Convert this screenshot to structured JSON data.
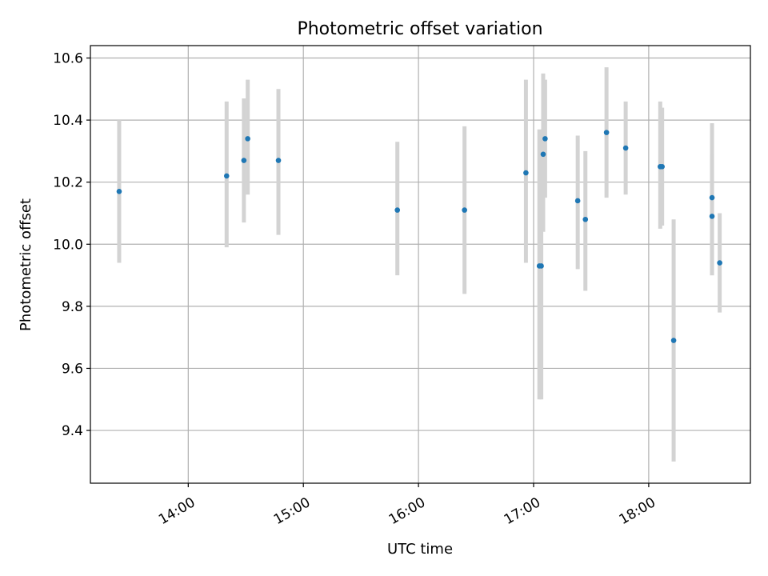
{
  "chart_data": {
    "type": "scatter",
    "title": "Photometric offset variation",
    "xlabel": "UTC time",
    "ylabel": "Photometric offset",
    "x_axis_type": "time",
    "xlim": [
      "13:09",
      "18:53"
    ],
    "ylim": [
      9.23,
      10.64
    ],
    "xticks": [
      "14:00",
      "15:00",
      "16:00",
      "17:00",
      "18:00"
    ],
    "yticks": [
      9.4,
      9.6,
      9.8,
      10.0,
      10.2,
      10.4,
      10.6
    ],
    "ytick_labels": [
      "9.4",
      "9.6",
      "9.8",
      "10.0",
      "10.2",
      "10.4",
      "10.6"
    ],
    "grid": true,
    "marker_color": "#1f77b4",
    "errorbar_color": "#d3d3d3",
    "series": [
      {
        "points": [
          {
            "x": "13:24",
            "y": 10.17,
            "ylo": 9.94,
            "yhi": 10.4
          },
          {
            "x": "14:20",
            "y": 10.22,
            "ylo": 9.99,
            "yhi": 10.46
          },
          {
            "x": "14:29",
            "y": 10.27,
            "ylo": 10.07,
            "yhi": 10.47
          },
          {
            "x": "14:31",
            "y": 10.34,
            "ylo": 10.16,
            "yhi": 10.53
          },
          {
            "x": "14:47",
            "y": 10.27,
            "ylo": 10.03,
            "yhi": 10.5
          },
          {
            "x": "15:49",
            "y": 10.11,
            "ylo": 9.9,
            "yhi": 10.33
          },
          {
            "x": "16:24",
            "y": 10.11,
            "ylo": 9.84,
            "yhi": 10.38
          },
          {
            "x": "16:56",
            "y": 10.23,
            "ylo": 9.94,
            "yhi": 10.53
          },
          {
            "x": "17:03",
            "y": 9.93,
            "ylo": 9.5,
            "yhi": 10.37
          },
          {
            "x": "17:04",
            "y": 9.93,
            "ylo": 9.5,
            "yhi": 10.35
          },
          {
            "x": "17:05",
            "y": 10.29,
            "ylo": 10.04,
            "yhi": 10.55
          },
          {
            "x": "17:06",
            "y": 10.34,
            "ylo": 10.15,
            "yhi": 10.53
          },
          {
            "x": "17:23",
            "y": 10.14,
            "ylo": 9.92,
            "yhi": 10.35
          },
          {
            "x": "17:27",
            "y": 10.08,
            "ylo": 9.85,
            "yhi": 10.3
          },
          {
            "x": "17:38",
            "y": 10.36,
            "ylo": 10.15,
            "yhi": 10.57
          },
          {
            "x": "17:48",
            "y": 10.31,
            "ylo": 10.16,
            "yhi": 10.46
          },
          {
            "x": "18:06",
            "y": 10.25,
            "ylo": 10.05,
            "yhi": 10.46
          },
          {
            "x": "18:07",
            "y": 10.25,
            "ylo": 10.06,
            "yhi": 10.44
          },
          {
            "x": "18:13",
            "y": 9.69,
            "ylo": 9.3,
            "yhi": 10.08
          },
          {
            "x": "18:33",
            "y": 10.15,
            "ylo": 9.9,
            "yhi": 10.39
          },
          {
            "x": "18:33",
            "y": 10.09,
            "ylo": 9.9,
            "yhi": 10.29
          },
          {
            "x": "18:37",
            "y": 9.94,
            "ylo": 9.78,
            "yhi": 10.1
          }
        ]
      }
    ]
  }
}
